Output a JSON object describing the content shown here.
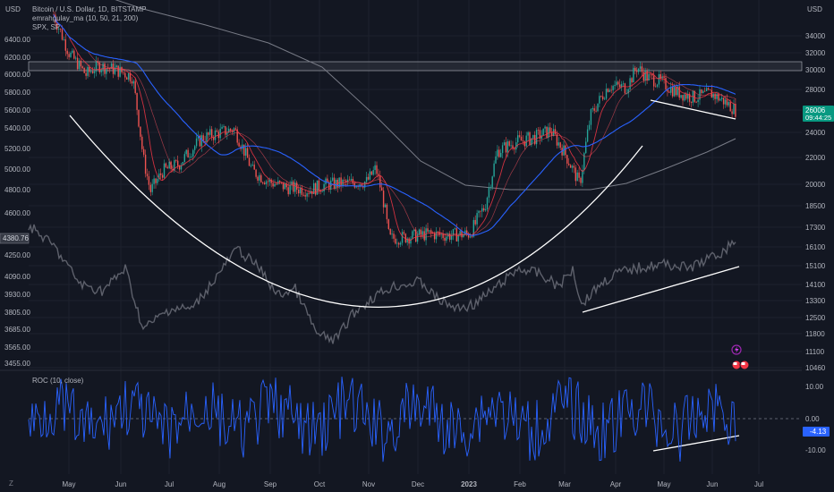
{
  "legend": {
    "line1": "Bitcoin / U.S. Dollar, 1D, BITSTAMP",
    "line2": "emrahgulay_ma (10, 50, 21, 200)",
    "line3": "SPX, SP"
  },
  "roc_legend": "ROC (10, close)",
  "left_axis_unit": "USD",
  "right_axis_unit": "USD",
  "colors": {
    "background": "#131722",
    "grid": "#1e222d",
    "up": "#26a69a",
    "down": "#ef5350",
    "ma_blue": "#2962ff",
    "ma_red": "#f23645",
    "ma200": "#787b86",
    "spx": "#5d606b",
    "roc": "#2962ff",
    "price_label": "#089981",
    "roc_label": "#2962ff"
  },
  "chart_data": {
    "type": "line",
    "x_ticks": [
      "May",
      "Jun",
      "Jul",
      "Aug",
      "Sep",
      "Oct",
      "Nov",
      "Dec",
      "2023",
      "Feb",
      "Mar",
      "Apr",
      "May",
      "Jun",
      "Jul"
    ],
    "left_axis_ticks": [
      "6400.00",
      "6200.00",
      "6000.00",
      "5800.00",
      "5600.00",
      "5400.00",
      "5200.00",
      "5000.00",
      "4800.00",
      "4600.00",
      "4250.00",
      "4090.00",
      "3930.00",
      "3805.00",
      "3685.00",
      "3565.00",
      "3455.00"
    ],
    "right_axis_ticks": [
      "34000",
      "32000",
      "30000",
      "28000",
      "26000",
      "24000",
      "22000",
      "20000",
      "18500",
      "17300",
      "16100",
      "15100",
      "14100",
      "13300",
      "12500",
      "11800",
      "11100",
      "10460"
    ],
    "roc_axis_ticks": [
      "10.00",
      "0.00",
      "-10.00"
    ],
    "current_price": "26006",
    "countdown": "09:44:25",
    "spx_current": "4380.76",
    "roc_current": "-4.13",
    "btc_close_approx": [
      {
        "x": "2022-05",
        "y": 30500
      },
      {
        "x": "2022-06",
        "y": 21000
      },
      {
        "x": "2022-07",
        "y": 23500
      },
      {
        "x": "2022-08",
        "y": 20000
      },
      {
        "x": "2022-09",
        "y": 19400
      },
      {
        "x": "2022-10",
        "y": 20400
      },
      {
        "x": "2022-11",
        "y": 16900
      },
      {
        "x": "2022-12",
        "y": 16600
      },
      {
        "x": "2023-01",
        "y": 23100
      },
      {
        "x": "2023-02",
        "y": 23100
      },
      {
        "x": "2023-03",
        "y": 28400
      },
      {
        "x": "2023-04",
        "y": 29200
      },
      {
        "x": "2023-05",
        "y": 27200
      },
      {
        "x": "2023-06",
        "y": 26006
      }
    ]
  }
}
